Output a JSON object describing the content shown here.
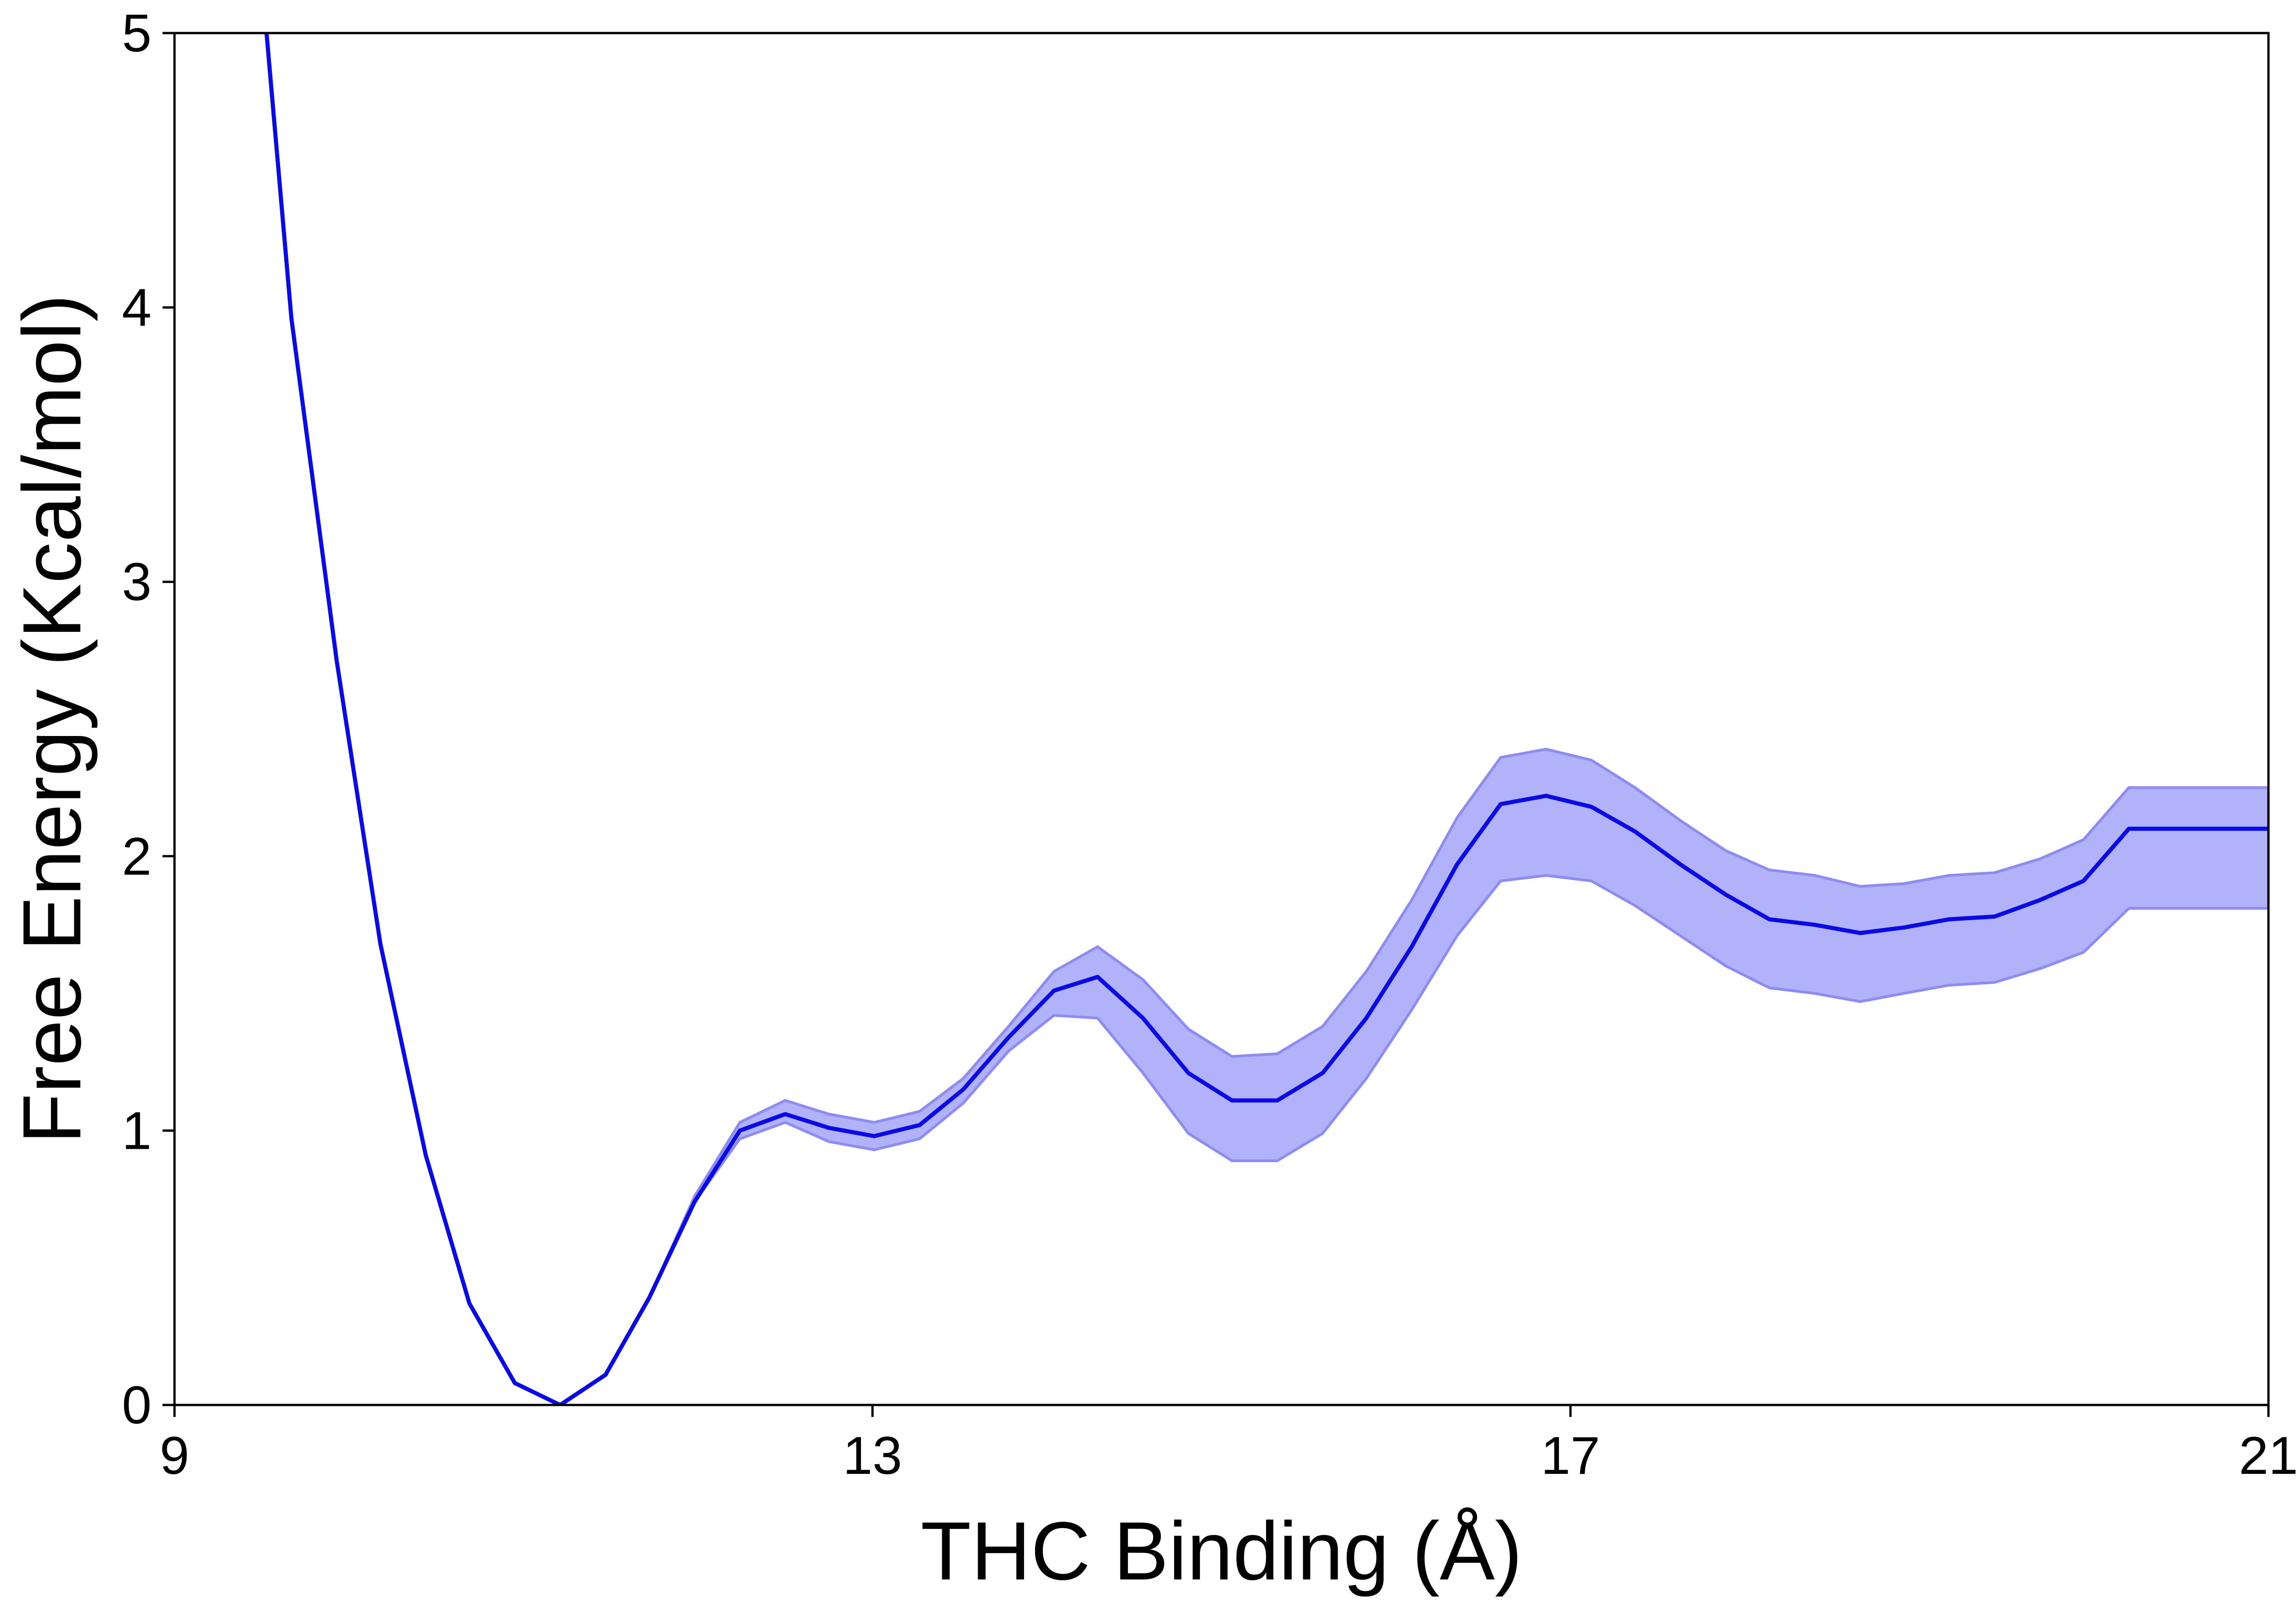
{
  "chart_data": {
    "type": "line",
    "title": "",
    "xlabel": "THC Binding (Å)",
    "ylabel": "Free Energy (Kcal/mol)",
    "xlim": [
      9,
      21
    ],
    "ylim": [
      0,
      5
    ],
    "xticks": [
      9,
      13,
      17,
      21
    ],
    "yticks": [
      0,
      1,
      2,
      3,
      4,
      5
    ],
    "grid": false,
    "legend": "none",
    "colors": {
      "line": "#0a0ae6",
      "band": "#b2b2fb",
      "band_edge": "#8c8cf2",
      "axes": "#000000"
    },
    "series": [
      {
        "x": [
          9.5,
          9.67,
          9.93,
          10.18,
          10.44,
          10.69,
          10.95,
          11.21,
          11.47,
          11.72,
          11.98,
          12.24,
          12.5,
          12.75,
          13.01,
          13.27,
          13.52,
          13.78,
          14.04,
          14.29,
          14.55,
          14.81,
          15.06,
          15.32,
          15.58,
          15.83,
          16.09,
          16.35,
          16.6,
          16.86,
          17.12,
          17.37,
          17.63,
          17.89,
          18.14,
          18.4,
          18.66,
          18.91,
          19.17,
          19.43,
          19.69,
          19.94,
          20.2,
          20.46,
          20.71,
          21.0
        ],
        "y": [
          5.2,
          3.96,
          2.71,
          1.68,
          0.91,
          0.37,
          0.08,
          0.0,
          0.11,
          0.39,
          0.74,
          1.0,
          1.06,
          1.01,
          0.98,
          1.02,
          1.15,
          1.34,
          1.51,
          1.56,
          1.41,
          1.21,
          1.11,
          1.11,
          1.21,
          1.41,
          1.67,
          1.97,
          2.19,
          2.22,
          2.18,
          2.09,
          1.97,
          1.86,
          1.77,
          1.75,
          1.72,
          1.74,
          1.77,
          1.78,
          1.84,
          1.91,
          2.1,
          2.1,
          2.1,
          2.1
        ],
        "lower": [
          5.2,
          3.96,
          2.71,
          1.68,
          0.91,
          0.37,
          0.08,
          0.0,
          0.11,
          0.39,
          0.74,
          0.97,
          1.03,
          0.96,
          0.93,
          0.97,
          1.1,
          1.29,
          1.42,
          1.41,
          1.21,
          0.99,
          0.89,
          0.89,
          0.99,
          1.19,
          1.44,
          1.71,
          1.91,
          1.93,
          1.91,
          1.82,
          1.71,
          1.6,
          1.52,
          1.5,
          1.47,
          1.5,
          1.53,
          1.54,
          1.59,
          1.65,
          1.81,
          1.81,
          1.81,
          1.81
        ],
        "upper": [
          5.2,
          3.96,
          2.71,
          1.68,
          0.91,
          0.37,
          0.08,
          0.0,
          0.11,
          0.39,
          0.76,
          1.03,
          1.11,
          1.06,
          1.03,
          1.07,
          1.19,
          1.38,
          1.58,
          1.67,
          1.55,
          1.37,
          1.27,
          1.28,
          1.38,
          1.58,
          1.84,
          2.14,
          2.36,
          2.39,
          2.35,
          2.25,
          2.13,
          2.02,
          1.95,
          1.93,
          1.89,
          1.9,
          1.93,
          1.94,
          1.99,
          2.06,
          2.25,
          2.25,
          2.25,
          2.25
        ]
      }
    ]
  }
}
